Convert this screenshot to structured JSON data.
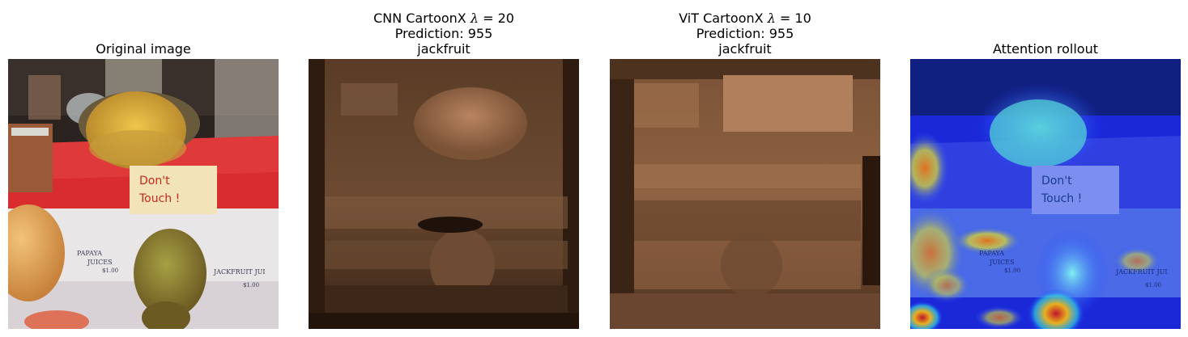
{
  "panels": [
    {
      "title_lines": [
        "Original image"
      ],
      "image": "photo of jackfruit at a market stall with a handwritten \"Don't Touch\" sign"
    },
    {
      "title_lines": [
        "CNN CartoonX λ = 20",
        "Prediction: 955",
        "jackfruit"
      ],
      "title_main": "CNN CartoonX ",
      "lambda_symbol": "λ",
      "lambda_value": " = 20",
      "line2": "Prediction: 955",
      "line3": "jackfruit",
      "image": "copper-toned CartoonX explanation map"
    },
    {
      "title_lines": [
        "ViT CartoonX λ = 10",
        "Prediction: 955",
        "jackfruit"
      ],
      "title_main": "ViT CartoonX ",
      "lambda_symbol": "λ",
      "lambda_value": " = 10",
      "line2": "Prediction: 955",
      "line3": "jackfruit",
      "image": "copper-toned CartoonX explanation map"
    },
    {
      "title_lines": [
        "Attention rollout"
      ],
      "image": "attention heatmap overlay on photo"
    }
  ],
  "original_image": {
    "title": "Original image",
    "sign_text_line1": "Don't",
    "sign_text_line2": "Touch !",
    "label_left_1": "PAPAYA",
    "label_left_2": "JUICES",
    "label_left_3": "$1.00",
    "label_right_1": "JACKFRUIT JUI",
    "label_right_2": "$1.00"
  },
  "attention": {
    "title": "Attention rollout",
    "sign_text_line1": "Don't",
    "sign_text_line2": "Touch !",
    "label_left_1": "PAPAYA",
    "label_left_2": "JUICES",
    "label_left_3": "$1.00",
    "label_right_1": "JACKFRUIT JUI",
    "label_right_2": "$1.00"
  },
  "cnn": {
    "title_main": "CNN CartoonX ",
    "lambda_symbol": "λ",
    "lambda_value": " = 20",
    "prediction": "Prediction: 955",
    "label": "jackfruit"
  },
  "vit": {
    "title_main": "ViT CartoonX ",
    "lambda_symbol": "λ",
    "lambda_value": " = 10",
    "prediction": "Prediction: 955",
    "label": "jackfruit"
  }
}
